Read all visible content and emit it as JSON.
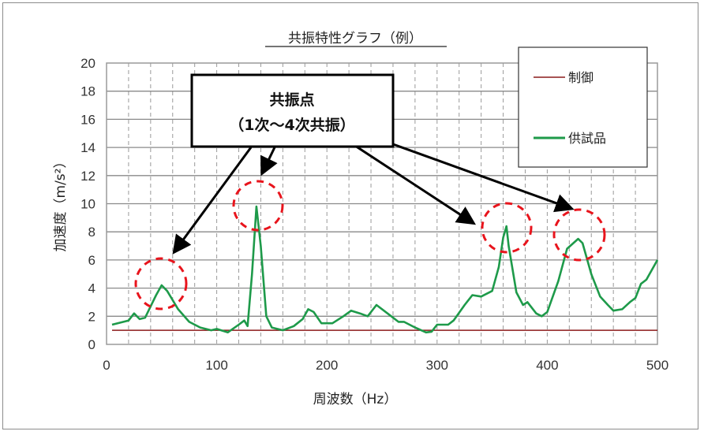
{
  "chart_data": {
    "type": "line",
    "title": "共振特性グラフ（例）",
    "xlabel": "周波数（Hz）",
    "ylabel": "加速度（m/s²）",
    "xlim": [
      0,
      500
    ],
    "ylim": [
      0,
      20
    ],
    "xticks": [
      0,
      100,
      200,
      300,
      400,
      500
    ],
    "yticks": [
      0,
      2,
      4,
      6,
      8,
      10,
      12,
      14,
      16,
      18,
      20
    ],
    "grid": {
      "horizontal": "solid",
      "vertical": "dashed"
    },
    "legend_position": "top-right",
    "series": [
      {
        "name": "制御",
        "color": "#8b1a1a",
        "x": [
          5,
          500
        ],
        "y": [
          1.0,
          1.0
        ]
      },
      {
        "name": "供試品",
        "color": "#1e9a4a",
        "x": [
          5,
          20,
          25,
          30,
          35,
          45,
          50,
          55,
          65,
          75,
          85,
          95,
          100,
          110,
          120,
          125,
          128,
          132,
          136,
          140,
          145,
          150,
          160,
          170,
          178,
          183,
          188,
          195,
          205,
          215,
          222,
          230,
          237,
          245,
          255,
          265,
          270,
          280,
          290,
          295,
          300,
          310,
          315,
          325,
          332,
          340,
          350,
          356,
          360,
          363,
          365,
          372,
          378,
          382,
          390,
          395,
          400,
          410,
          418,
          428,
          432,
          440,
          448,
          455,
          460,
          468,
          475,
          480,
          485,
          490,
          500
        ],
        "y": [
          1.4,
          1.7,
          2.2,
          1.8,
          1.9,
          3.5,
          4.2,
          3.8,
          2.5,
          1.6,
          1.2,
          1.0,
          1.1,
          0.85,
          1.4,
          1.7,
          1.3,
          5.0,
          9.8,
          7.0,
          2.0,
          1.2,
          1.0,
          1.3,
          1.8,
          2.5,
          2.3,
          1.5,
          1.5,
          2.0,
          2.4,
          2.2,
          2.0,
          2.8,
          2.2,
          1.6,
          1.6,
          1.2,
          0.85,
          0.9,
          1.4,
          1.4,
          1.7,
          2.8,
          3.5,
          3.4,
          3.8,
          5.5,
          7.6,
          8.4,
          7.0,
          3.7,
          2.8,
          3.0,
          2.2,
          2.0,
          2.3,
          4.5,
          6.8,
          7.5,
          7.2,
          5.0,
          3.4,
          2.8,
          2.4,
          2.5,
          3.0,
          3.3,
          4.3,
          4.6,
          6.0
        ]
      }
    ],
    "annotations": {
      "callout_line1": "共振点",
      "callout_line2": "（1次～4次共振）",
      "resonance_points_hz": [
        50,
        136,
        363,
        428
      ]
    }
  }
}
